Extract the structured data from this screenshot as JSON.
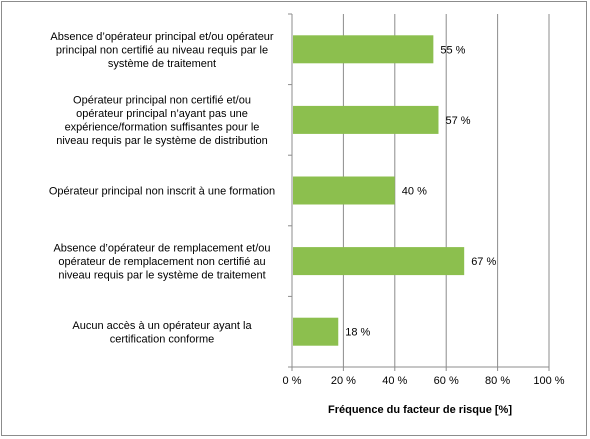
{
  "chart_data": {
    "type": "bar",
    "orientation": "horizontal",
    "categories": [
      "Absence d’opérateur principal et/ou opérateur principal non certifié au niveau requis par le système de traitement",
      "Opérateur principal non certifié et/ou opérateur principal n’ayant pas une expérience/formation suffisantes pour le niveau requis par le système de distribution",
      "Opérateur principal non inscrit à une formation",
      "Absence d’opérateur de remplacement et/ou opérateur de remplacement non certifié au niveau requis par le système de traitement",
      "Aucun accès à un opérateur ayant la certification conforme"
    ],
    "category_lines": [
      [
        "Absence d’opérateur principal et/ou opérateur",
        "principal non certifié au niveau requis par le",
        "système de traitement"
      ],
      [
        "Opérateur principal non certifié et/ou",
        "opérateur principal n’ayant pas une",
        "expérience/formation suffisantes pour le",
        "niveau requis par le système de distribution"
      ],
      [
        "Opérateur principal non inscrit à une formation"
      ],
      [
        "Absence d’opérateur de remplacement et/ou",
        "opérateur de remplacement non certifié au",
        "niveau requis par le système de traitement"
      ],
      [
        "Aucun accès à un opérateur ayant la",
        "certification conforme"
      ]
    ],
    "values": [
      55,
      57,
      40,
      67,
      18
    ],
    "data_labels": [
      "55 %",
      "57 %",
      "40 %",
      "67 %",
      "18 %"
    ],
    "xlim": [
      0,
      100
    ],
    "x_ticks": [
      0,
      20,
      40,
      60,
      80,
      100
    ],
    "x_tick_labels": [
      "0 %",
      "20 %",
      "40 %",
      "60 %",
      "80 %",
      "100 %"
    ],
    "xlabel": "Fréquence du facteur de risque [%]",
    "grid": "vertical",
    "bar_color": "#8cbf4e",
    "grid_color": "#8c8c8c"
  }
}
